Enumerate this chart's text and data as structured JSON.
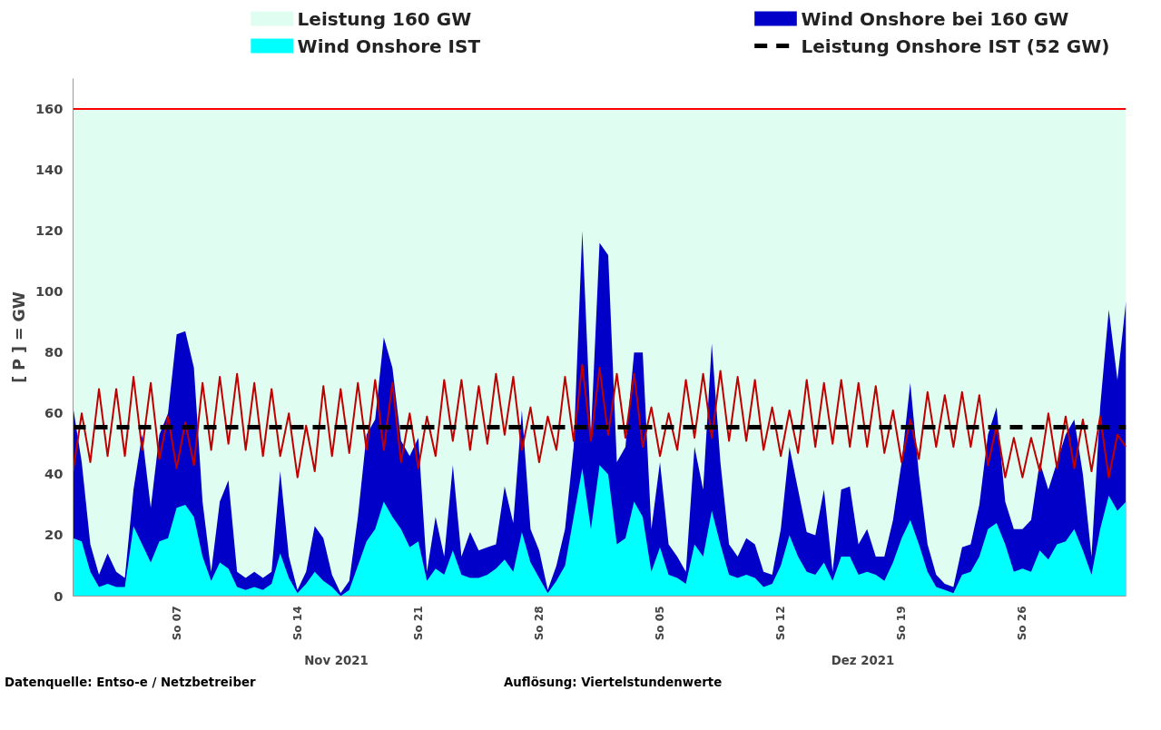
{
  "chart_data": {
    "type": "area",
    "ylabel": "[ P ] = GW",
    "x": [
      "2021-11-01T00:00",
      "2021-11-01T12:00",
      "2021-11-02T00:00",
      "2021-11-02T12:00",
      "2021-11-03T00:00",
      "2021-11-03T12:00",
      "2021-11-04T00:00",
      "2021-11-04T12:00",
      "2021-11-05T00:00",
      "2021-11-05T12:00",
      "2021-11-06T00:00",
      "2021-11-06T12:00",
      "2021-11-07T00:00",
      "2021-11-07T12:00",
      "2021-11-08T00:00",
      "2021-11-08T12:00",
      "2021-11-09T00:00",
      "2021-11-09T12:00",
      "2021-11-10T00:00",
      "2021-11-10T12:00",
      "2021-11-11T00:00",
      "2021-11-11T12:00",
      "2021-11-12T00:00",
      "2021-11-12T12:00",
      "2021-11-13T00:00",
      "2021-11-13T12:00",
      "2021-11-14T00:00",
      "2021-11-14T12:00",
      "2021-11-15T00:00",
      "2021-11-15T12:00",
      "2021-11-16T00:00",
      "2021-11-16T12:00",
      "2021-11-17T00:00",
      "2021-11-17T12:00",
      "2021-11-18T00:00",
      "2021-11-18T12:00",
      "2021-11-19T00:00",
      "2021-11-19T12:00",
      "2021-11-20T00:00",
      "2021-11-20T12:00",
      "2021-11-21T00:00",
      "2021-11-21T12:00",
      "2021-11-22T00:00",
      "2021-11-22T12:00",
      "2021-11-23T00:00",
      "2021-11-23T12:00",
      "2021-11-24T00:00",
      "2021-11-24T12:00",
      "2021-11-25T00:00",
      "2021-11-25T12:00",
      "2021-11-26T00:00",
      "2021-11-26T12:00",
      "2021-11-27T00:00",
      "2021-11-27T12:00",
      "2021-11-28T00:00",
      "2021-11-28T12:00",
      "2021-11-29T00:00",
      "2021-11-29T12:00",
      "2021-11-30T00:00",
      "2021-11-30T12:00",
      "2021-12-01T00:00",
      "2021-12-01T12:00",
      "2021-12-02T00:00",
      "2021-12-02T12:00",
      "2021-12-03T00:00",
      "2021-12-03T12:00",
      "2021-12-04T00:00",
      "2021-12-04T12:00",
      "2021-12-05T00:00",
      "2021-12-05T12:00",
      "2021-12-06T00:00",
      "2021-12-06T12:00",
      "2021-12-07T00:00",
      "2021-12-07T12:00",
      "2021-12-08T00:00",
      "2021-12-08T12:00",
      "2021-12-09T00:00",
      "2021-12-09T12:00",
      "2021-12-10T00:00",
      "2021-12-10T12:00",
      "2021-12-11T00:00",
      "2021-12-11T12:00",
      "2021-12-12T00:00",
      "2021-12-12T12:00",
      "2021-12-13T00:00",
      "2021-12-13T12:00",
      "2021-12-14T00:00",
      "2021-12-14T12:00",
      "2021-12-15T00:00",
      "2021-12-15T12:00",
      "2021-12-16T00:00",
      "2021-12-16T12:00",
      "2021-12-17T00:00",
      "2021-12-17T12:00",
      "2021-12-18T00:00",
      "2021-12-18T12:00",
      "2021-12-19T00:00",
      "2021-12-19T12:00",
      "2021-12-20T00:00",
      "2021-12-20T12:00",
      "2021-12-21T00:00",
      "2021-12-21T12:00",
      "2021-12-22T00:00",
      "2021-12-22T12:00",
      "2021-12-23T00:00",
      "2021-12-23T12:00",
      "2021-12-24T00:00",
      "2021-12-24T12:00",
      "2021-12-25T00:00",
      "2021-12-25T12:00",
      "2021-12-26T00:00",
      "2021-12-26T12:00",
      "2021-12-27T00:00",
      "2021-12-27T12:00",
      "2021-12-28T00:00",
      "2021-12-28T12:00",
      "2021-12-29T00:00",
      "2021-12-29T12:00",
      "2021-12-30T00:00",
      "2021-12-30T12:00",
      "2021-12-31T00:00",
      "2021-12-31T12:00",
      "2022-01-01T00:00"
    ],
    "series": [
      {
        "name": "Wind Onshore bei 160 GW",
        "type": "area",
        "color": "#0000c8",
        "values": [
          62,
          44,
          17,
          7,
          14,
          8,
          6,
          35,
          53,
          29,
          53,
          60,
          86,
          87,
          75,
          31,
          8,
          31,
          38,
          8,
          6,
          8,
          6,
          8,
          41,
          13,
          2,
          8,
          23,
          19,
          7,
          1,
          5,
          26,
          53,
          58,
          85,
          75,
          51,
          46,
          52,
          8,
          26,
          13,
          43,
          13,
          21,
          15,
          16,
          17,
          36,
          24,
          61,
          22,
          15,
          2,
          10,
          22,
          49,
          120,
          53,
          116,
          112,
          44,
          49,
          80,
          80,
          22,
          44,
          17,
          13,
          8,
          49,
          35,
          83,
          44,
          17,
          13,
          19,
          17,
          8,
          7,
          22,
          49,
          35,
          21,
          20,
          35,
          8,
          35,
          36,
          17,
          22,
          13,
          13,
          25,
          44,
          70,
          40,
          17,
          7,
          4,
          3,
          16,
          17,
          30,
          53,
          62,
          31,
          22,
          22,
          25,
          44,
          35,
          44,
          53,
          58,
          40,
          13,
          62,
          94,
          71,
          97
        ]
      },
      {
        "name": "Wind Onshore IST",
        "type": "area",
        "color": "#00ffff",
        "values": [
          19,
          18,
          8,
          3,
          4,
          3,
          3,
          23,
          17,
          11,
          18,
          19,
          29,
          30,
          26,
          13,
          5,
          11,
          9,
          3,
          2,
          3,
          2,
          4,
          14,
          6,
          1,
          4,
          8,
          5,
          3,
          0,
          2,
          10,
          18,
          22,
          31,
          26,
          22,
          16,
          18,
          5,
          9,
          7,
          15,
          7,
          6,
          6,
          7,
          9,
          12,
          8,
          21,
          11,
          6,
          1,
          5,
          10,
          26,
          42,
          22,
          43,
          40,
          17,
          19,
          31,
          26,
          8,
          16,
          7,
          6,
          4,
          17,
          13,
          28,
          17,
          7,
          6,
          7,
          6,
          3,
          4,
          10,
          20,
          13,
          8,
          7,
          11,
          5,
          13,
          13,
          7,
          8,
          7,
          5,
          11,
          19,
          25,
          17,
          8,
          3,
          2,
          1,
          7,
          8,
          13,
          22,
          24,
          17,
          8,
          9,
          8,
          15,
          12,
          17,
          18,
          22,
          15,
          7,
          22,
          33,
          28,
          31
        ]
      },
      {
        "type": "line",
        "color": "#c00000",
        "values": [
          41,
          60,
          44,
          68,
          46,
          68,
          46,
          72,
          48,
          70,
          45,
          59,
          42,
          57,
          43,
          70,
          48,
          72,
          50,
          73,
          48,
          70,
          46,
          68,
          46,
          60,
          39,
          56,
          41,
          69,
          46,
          68,
          47,
          70,
          48,
          71,
          48,
          70,
          44,
          60,
          42,
          59,
          46,
          71,
          51,
          71,
          48,
          69,
          50,
          73,
          53,
          72,
          48,
          62,
          44,
          59,
          48,
          72,
          51,
          76,
          51,
          75,
          53,
          73,
          52,
          73,
          49,
          62,
          46,
          60,
          48,
          71,
          52,
          73,
          52,
          74,
          51,
          72,
          51,
          71,
          48,
          62,
          46,
          61,
          47,
          71,
          49,
          70,
          50,
          71,
          49,
          70,
          49,
          69,
          47,
          61,
          44,
          58,
          45,
          67,
          49,
          66,
          49,
          67,
          49,
          66,
          43,
          56,
          39,
          52,
          39,
          52,
          41,
          60,
          42,
          59,
          42,
          58,
          41,
          59,
          39,
          53,
          49
        ]
      },
      {
        "name": "Leistung Onshore IST (52 GW)",
        "type": "line",
        "line_style": "dashed",
        "color": "#000000",
        "x": [
          "2021-11-01T00:00",
          "2022-01-01T00:00"
        ],
        "values": [
          55.5,
          55.5
        ]
      }
    ],
    "xlim": [
      "2021-11-01T00:00",
      "2022-01-01T00:00"
    ],
    "xticks": [
      {
        "value": "2021-11-07",
        "label": "So 07"
      },
      {
        "value": "2021-11-14",
        "label": "So 14"
      },
      {
        "value": "2021-11-21",
        "label": "So 21"
      },
      {
        "value": "2021-11-28",
        "label": "So 28"
      },
      {
        "value": "2021-12-05",
        "label": "So 05"
      },
      {
        "value": "2021-12-12",
        "label": "So 12"
      },
      {
        "value": "2021-12-19",
        "label": "So 19"
      },
      {
        "value": "2021-12-26",
        "label": "So 26"
      }
    ],
    "ylim": [
      0,
      170
    ],
    "yticks": [
      0,
      20,
      40,
      60,
      80,
      100,
      120,
      140,
      160
    ],
    "grid": "y",
    "legend": "top",
    "ref_lines": [
      {
        "axis": "y",
        "value": 160,
        "color": "#ff0000"
      }
    ],
    "bands": [
      {
        "axis": "y",
        "from": 0,
        "to": 160,
        "label": "Leistung 160 GW",
        "color": "#dffdf0"
      }
    ],
    "annotations": [
      "Nov 2021",
      "Dez 2021",
      "Datenquelle: Entso-e  / Netzbetreiber",
      "Auflösung: Viertelstundenwerte"
    ]
  }
}
